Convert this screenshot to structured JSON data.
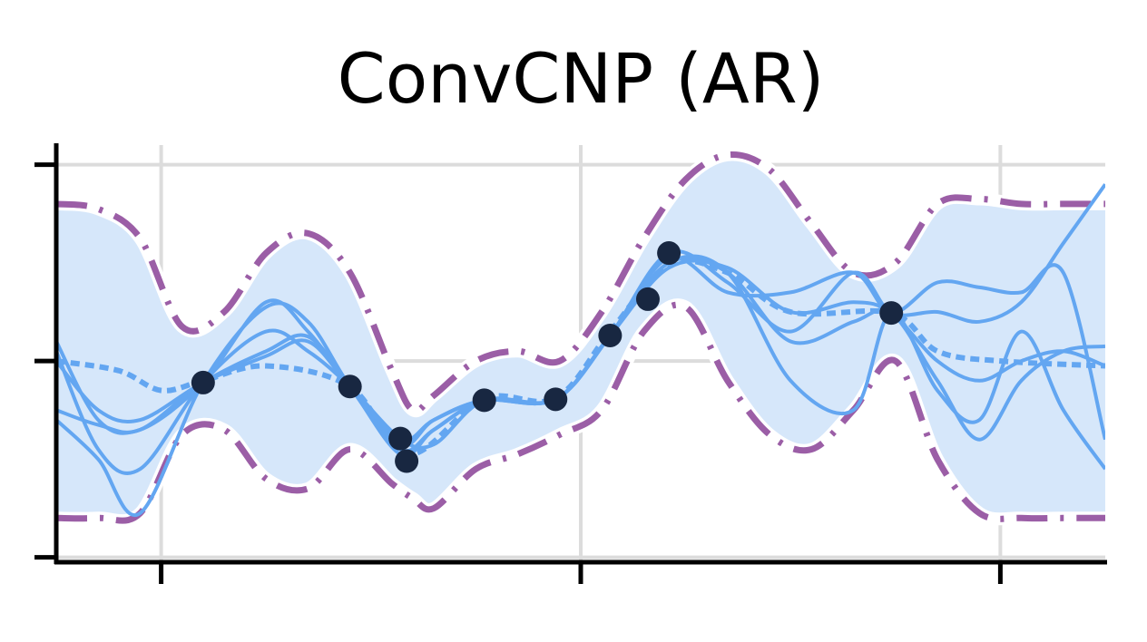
{
  "chart_data": {
    "type": "line",
    "title": "ConvCNP (AR)",
    "xlabel": "",
    "ylabel": "",
    "xlim": [
      -2.5,
      22.5
    ],
    "ylim": [
      -2.05,
      2.2
    ],
    "xticks": [
      0,
      10,
      20
    ],
    "yticks": [
      -2,
      0,
      2
    ],
    "grid": true,
    "colors": {
      "band": "#d6e7fa",
      "samples": "#63a6f1",
      "mean": "#63a6f1",
      "bounds": "#9b5ea6",
      "context": "#182741",
      "grid": "#dcdcdc",
      "axis": "#000000"
    },
    "context_points": {
      "x": [
        1.0,
        4.5,
        5.7,
        5.85,
        7.7,
        9.4,
        10.7,
        11.6,
        12.1,
        17.4
      ],
      "y": [
        -0.22,
        -0.26,
        -0.79,
        -1.02,
        -0.4,
        -0.39,
        0.26,
        0.63,
        1.1,
        0.49
      ]
    },
    "mean": {
      "x": [
        -2.5,
        -1,
        0,
        1,
        2.5,
        4.5,
        5.9,
        7.7,
        9.4,
        10.7,
        12.1,
        13.5,
        15,
        17.4,
        18.5,
        20,
        22.5
      ],
      "y": [
        0.0,
        -0.1,
        -0.3,
        -0.2,
        -0.05,
        -0.26,
        -0.95,
        -0.38,
        -0.38,
        0.3,
        0.98,
        0.9,
        0.5,
        0.49,
        0.1,
        0.0,
        -0.05
      ]
    },
    "upper_bound": {
      "x": [
        -2.5,
        -1.5,
        -0.5,
        0.5,
        1.5,
        2.5,
        3.5,
        4.5,
        5.5,
        6.0,
        6.5,
        7.5,
        8.5,
        9.5,
        10.5,
        11.5,
        12.5,
        13.5,
        14.5,
        15.5,
        16.5,
        17.5,
        18.5,
        19.5,
        20.5,
        21.5,
        22.5
      ],
      "y": [
        1.6,
        1.55,
        1.25,
        0.35,
        0.5,
        1.1,
        1.3,
        0.9,
        -0.1,
        -0.5,
        -0.35,
        0.0,
        0.1,
        0.0,
        0.5,
        1.25,
        1.85,
        2.1,
        1.95,
        1.4,
        0.9,
        1.0,
        1.6,
        1.65,
        1.6,
        1.6,
        1.6
      ]
    },
    "lower_bound": {
      "x": [
        -2.5,
        -1.5,
        -0.5,
        0.5,
        1.5,
        2.5,
        3.5,
        4.5,
        5.5,
        6.0,
        6.5,
        7.5,
        8.5,
        9.5,
        10.5,
        11.5,
        12.5,
        13.5,
        14.5,
        15.5,
        16.5,
        17.5,
        18.5,
        19.5,
        20.5,
        21.5,
        22.5
      ],
      "y": [
        -1.6,
        -1.6,
        -1.55,
        -0.75,
        -0.7,
        -1.2,
        -1.3,
        -0.9,
        -1.25,
        -1.4,
        -1.5,
        -1.1,
        -0.95,
        -0.75,
        -0.5,
        0.3,
        0.55,
        -0.2,
        -0.75,
        -0.9,
        -0.5,
        0.0,
        -1.0,
        -1.55,
        -1.6,
        -1.6,
        -1.6
      ]
    },
    "samples": [
      {
        "x": [
          -2.5,
          -1.5,
          -0.5,
          1.0,
          2.5,
          3.5,
          4.5,
          5.7,
          6.5,
          7.7,
          9.4,
          10.7,
          12.1,
          13.5,
          15.0,
          16.5,
          17.4,
          18.5,
          19.5,
          20.5,
          21.5,
          22.5
        ],
        "y": [
          0.1,
          -0.9,
          -1.1,
          -0.22,
          0.3,
          0.1,
          -0.26,
          -0.79,
          -0.85,
          -0.4,
          -0.39,
          0.26,
          1.1,
          0.8,
          0.3,
          0.9,
          0.49,
          0.5,
          0.4,
          0.6,
          1.2,
          1.8
        ]
      },
      {
        "x": [
          -2.5,
          -1.5,
          -0.5,
          1.0,
          2.5,
          3.5,
          4.5,
          5.7,
          6.5,
          7.7,
          9.4,
          10.7,
          12.1,
          13.5,
          15.0,
          16.5,
          17.4,
          18.5,
          19.5,
          20.5,
          21.5,
          22.5
        ],
        "y": [
          -0.6,
          -1.0,
          -1.55,
          -0.22,
          0.55,
          0.4,
          -0.26,
          -0.9,
          -0.7,
          -0.4,
          -0.39,
          0.26,
          1.0,
          0.9,
          -0.2,
          -0.5,
          0.49,
          -0.3,
          -0.6,
          0.3,
          -0.5,
          -1.1
        ]
      },
      {
        "x": [
          -2.5,
          -1.5,
          -0.5,
          1.0,
          2.5,
          3.5,
          4.5,
          5.7,
          6.5,
          7.7,
          9.4,
          10.7,
          12.1,
          13.5,
          15.0,
          16.5,
          17.4,
          18.5,
          19.5,
          20.5,
          21.5,
          22.5
        ],
        "y": [
          0.2,
          -0.6,
          -0.7,
          -0.22,
          0.6,
          0.3,
          -0.26,
          -0.85,
          -0.6,
          -0.4,
          -0.39,
          0.26,
          1.05,
          0.7,
          0.7,
          0.9,
          0.49,
          0.8,
          0.75,
          0.7,
          0.9,
          -0.8
        ]
      },
      {
        "x": [
          -2.5,
          -1.5,
          -0.5,
          1.0,
          2.5,
          3.5,
          4.5,
          5.7,
          6.5,
          7.7,
          9.4,
          10.7,
          12.1,
          13.5,
          15.0,
          16.5,
          17.4,
          18.5,
          19.5,
          20.5,
          21.5,
          22.5
        ],
        "y": [
          -0.5,
          -0.65,
          -0.7,
          -0.22,
          0.1,
          0.25,
          -0.26,
          -0.95,
          -0.7,
          -0.4,
          -0.39,
          0.26,
          1.0,
          0.9,
          0.2,
          0.4,
          0.49,
          -0.2,
          -0.8,
          -0.2,
          0.1,
          0.15
        ]
      },
      {
        "x": [
          -2.5,
          -1.5,
          -0.5,
          1.0,
          2.5,
          3.5,
          4.5,
          5.7,
          6.5,
          7.7,
          9.4,
          10.7,
          12.1,
          13.5,
          15.0,
          16.5,
          17.4,
          18.5,
          19.5,
          20.5,
          21.5,
          22.5
        ],
        "y": [
          0.0,
          -0.5,
          -0.6,
          -0.22,
          0.05,
          0.2,
          -0.26,
          -0.8,
          -0.6,
          -0.4,
          -0.39,
          0.26,
          0.95,
          0.95,
          0.5,
          0.6,
          0.49,
          0.0,
          -0.2,
          0.0,
          0.1,
          -0.05
        ]
      }
    ]
  }
}
